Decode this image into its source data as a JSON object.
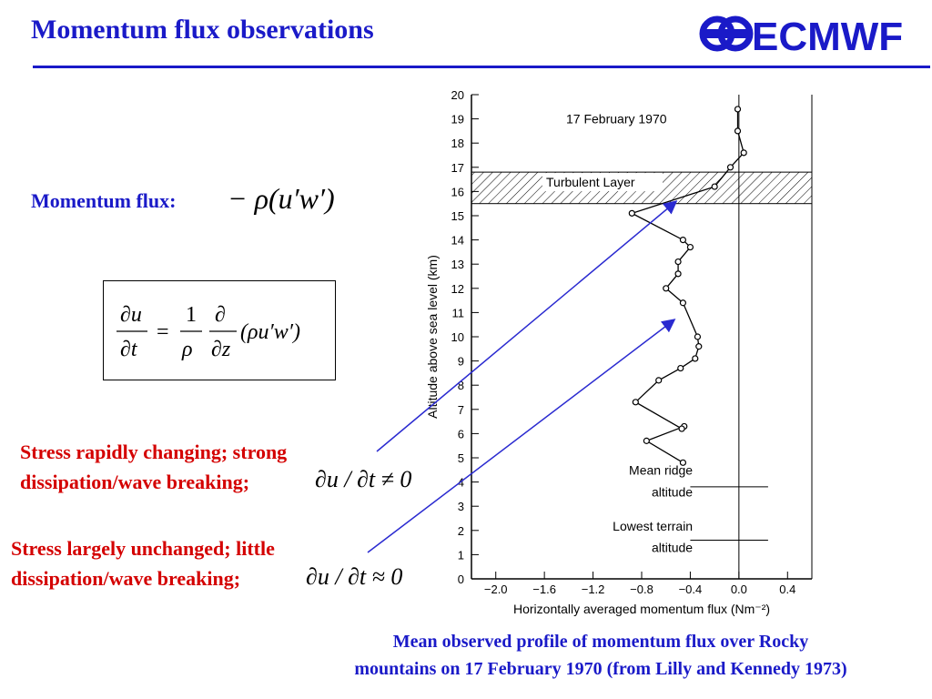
{
  "slide": {
    "title": "Momentum flux observations",
    "logo_text": "ECMWF"
  },
  "left": {
    "flux_label": "Momentum flux:",
    "flux_formula": "− ρ(u′w′)",
    "equation": {
      "lhs_num": "∂u",
      "lhs_den": "∂t",
      "eq": "=",
      "one": "1",
      "rho": "ρ",
      "d": "∂",
      "dz": "∂z",
      "term": "(ρu′w′)"
    },
    "statement1_line1": "Stress rapidly changing; strong",
    "statement1_line2": "dissipation/wave breaking;",
    "statement1_math": "∂u / ∂t ≠ 0",
    "statement2_line1": "Stress largely unchanged; little",
    "statement2_line2": "dissipation/wave breaking;",
    "statement2_math": "∂u / ∂t ≈ 0"
  },
  "caption": {
    "line1": "Mean observed profile of momentum flux over Rocky",
    "line2": "mountains on 17 February 1970 (from Lilly and Kennedy 1973)"
  },
  "colors": {
    "accent_blue": "#1a1ac8",
    "red": "#d40000",
    "arrow": "#2a2ad0"
  },
  "chart_data": {
    "type": "line",
    "title": "17 February 1970",
    "xlabel": "Horizontally averaged momentum flux (Nm⁻²)",
    "ylabel": "Altitude above sea level (km)",
    "xlim": [
      -2.2,
      0.6
    ],
    "ylim": [
      0,
      20
    ],
    "x_ticks": [
      -2.0,
      -1.6,
      -1.2,
      -0.8,
      -0.4,
      0.0,
      0.4
    ],
    "x_tick_labels": [
      "−2.0",
      "−1.6",
      "−1.2",
      "−0.8",
      "−0.4",
      "0.0",
      "0.4"
    ],
    "y_ticks": [
      0,
      1,
      2,
      3,
      4,
      5,
      6,
      7,
      8,
      9,
      10,
      11,
      12,
      13,
      14,
      15,
      16,
      17,
      18,
      19,
      20
    ],
    "y_tick_labels": [
      "0",
      "1",
      "2",
      "3",
      "4",
      "5",
      "6",
      "7",
      "8",
      "9",
      "10",
      "11",
      "12",
      "13",
      "14",
      "15",
      "16",
      "17",
      "18",
      "19",
      "20"
    ],
    "series": [
      {
        "x": [
          -0.46,
          -0.76,
          -0.45,
          -0.47,
          -0.85,
          -0.66,
          -0.48,
          -0.36,
          -0.33,
          -0.34,
          -0.46,
          -0.6,
          -0.5,
          -0.5,
          -0.4,
          -0.46,
          -0.88,
          -0.2,
          -0.07,
          0.04,
          -0.01,
          -0.01
        ],
        "y": [
          4.8,
          5.7,
          6.3,
          6.2,
          7.3,
          8.2,
          8.7,
          9.1,
          9.6,
          10.0,
          11.4,
          12.0,
          12.6,
          13.1,
          13.7,
          14.0,
          15.1,
          16.2,
          17.0,
          17.6,
          18.5,
          19.4
        ]
      }
    ],
    "annotations": {
      "band_label": "Turbulent Layer",
      "band_y": [
        15.5,
        16.8
      ],
      "ridge_label_1": "Mean ridge",
      "ridge_label_2": "altitude",
      "ridge_y": 3.8,
      "terrain_label_1": "Lowest terrain",
      "terrain_label_2": "altitude",
      "terrain_y": 1.6
    }
  }
}
